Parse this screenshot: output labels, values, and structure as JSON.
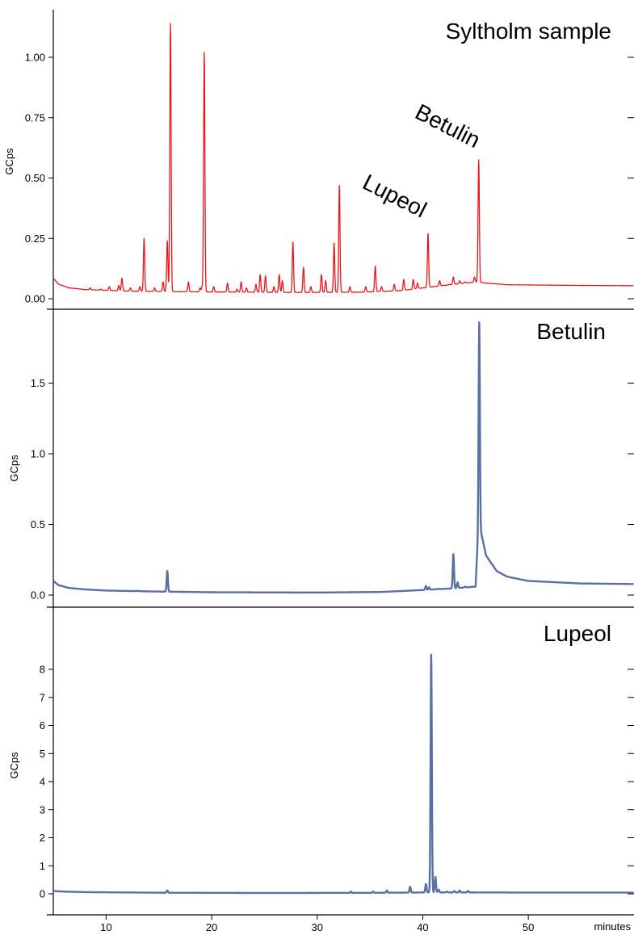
{
  "chart_data": [
    {
      "type": "line",
      "title": "Syltholm sample",
      "ylabel": "GCps",
      "xlabel": "",
      "xlim": [
        5,
        60
      ],
      "ylim": [
        -0.01,
        1.18
      ],
      "yticks": [
        0.0,
        0.25,
        0.5,
        0.75,
        1.0
      ],
      "ytick_labels": [
        "0.00",
        "0.25",
        "0.50",
        "0.75",
        "1.00"
      ],
      "color": "#e8161b",
      "baseline": [
        [
          5,
          0.085
        ],
        [
          5.5,
          0.06
        ],
        [
          6.5,
          0.045
        ],
        [
          8,
          0.038
        ],
        [
          12,
          0.032
        ],
        [
          20,
          0.028
        ],
        [
          28,
          0.026
        ],
        [
          34,
          0.027
        ],
        [
          38,
          0.034
        ],
        [
          40,
          0.045
        ],
        [
          42,
          0.055
        ],
        [
          44,
          0.065
        ],
        [
          45.2,
          0.07
        ],
        [
          46,
          0.065
        ],
        [
          48,
          0.058
        ],
        [
          55,
          0.055
        ],
        [
          60,
          0.054
        ]
      ],
      "peaks": [
        [
          8.5,
          0.045
        ],
        [
          9.5,
          0.04
        ],
        [
          10.3,
          0.05
        ],
        [
          11.2,
          0.055
        ],
        [
          11.5,
          0.085
        ],
        [
          12.3,
          0.045
        ],
        [
          13.2,
          0.05
        ],
        [
          13.6,
          0.25
        ],
        [
          14.6,
          0.045
        ],
        [
          15.4,
          0.07
        ],
        [
          15.8,
          0.24
        ],
        [
          16.1,
          1.14
        ],
        [
          17.8,
          0.07
        ],
        [
          18.9,
          0.045
        ],
        [
          19.1,
          0.05
        ],
        [
          19.3,
          1.02
        ],
        [
          20.2,
          0.05
        ],
        [
          21.5,
          0.065
        ],
        [
          22.4,
          0.04
        ],
        [
          22.8,
          0.07
        ],
        [
          23.3,
          0.045
        ],
        [
          24.2,
          0.06
        ],
        [
          24.6,
          0.1
        ],
        [
          25.1,
          0.095
        ],
        [
          25.9,
          0.05
        ],
        [
          26.4,
          0.1
        ],
        [
          26.7,
          0.075
        ],
        [
          27.7,
          0.235
        ],
        [
          28.7,
          0.13
        ],
        [
          29.4,
          0.05
        ],
        [
          30.4,
          0.1
        ],
        [
          30.8,
          0.075
        ],
        [
          31.6,
          0.23
        ],
        [
          32.1,
          0.47
        ],
        [
          33.1,
          0.05
        ],
        [
          34.6,
          0.05
        ],
        [
          35.5,
          0.135
        ],
        [
          36.1,
          0.05
        ],
        [
          37.3,
          0.06
        ],
        [
          38.2,
          0.08
        ],
        [
          39.1,
          0.08
        ],
        [
          39.5,
          0.065
        ],
        [
          40.5,
          0.27
        ],
        [
          41.6,
          0.075
        ],
        [
          42.5,
          0.06
        ],
        [
          42.9,
          0.09
        ],
        [
          43.5,
          0.075
        ],
        [
          44.0,
          0.07
        ],
        [
          44.5,
          0.065
        ],
        [
          44.9,
          0.09
        ],
        [
          45.3,
          0.575
        ]
      ],
      "annotations": [
        {
          "text": "Betulin",
          "x": 45.3,
          "y": 0.575
        },
        {
          "text": "Lupeol",
          "x": 40.5,
          "y": 0.27
        }
      ]
    },
    {
      "type": "line",
      "title": "Betulin",
      "ylabel": "GCps",
      "xlabel": "",
      "xlim": [
        5,
        60
      ],
      "ylim": [
        -0.09,
        1.95
      ],
      "yticks": [
        0.0,
        0.5,
        1.0,
        1.5
      ],
      "ytick_labels": [
        "0.0",
        "0.5",
        "1.0",
        "1.5"
      ],
      "color": "#5b6fa3",
      "baseline": [
        [
          5,
          0.1
        ],
        [
          5.5,
          0.07
        ],
        [
          6.5,
          0.05
        ],
        [
          8,
          0.04
        ],
        [
          10,
          0.032
        ],
        [
          15,
          0.025
        ],
        [
          20,
          0.02
        ],
        [
          30,
          0.018
        ],
        [
          36,
          0.022
        ],
        [
          39,
          0.032
        ],
        [
          41,
          0.04
        ],
        [
          43,
          0.048
        ],
        [
          45,
          0.06
        ],
        [
          45.35,
          0.6
        ],
        [
          45.5,
          0.45
        ],
        [
          46,
          0.28
        ],
        [
          47,
          0.17
        ],
        [
          48,
          0.13
        ],
        [
          50,
          0.1
        ],
        [
          55,
          0.082
        ],
        [
          60,
          0.078
        ]
      ],
      "peaks": [
        [
          13.0,
          0.03
        ],
        [
          15.8,
          0.17
        ],
        [
          40.3,
          0.065
        ],
        [
          40.6,
          0.055
        ],
        [
          41.5,
          0.045
        ],
        [
          42.9,
          0.29
        ],
        [
          43.3,
          0.09
        ],
        [
          44.0,
          0.06
        ],
        [
          45.35,
          1.93
        ]
      ],
      "annotations": []
    },
    {
      "type": "line",
      "title": "Lupeol",
      "ylabel": "GCps",
      "xlabel": "minutes",
      "xlim": [
        5,
        60
      ],
      "ylim": [
        -0.25,
        8.85
      ],
      "yticks": [
        0,
        1,
        2,
        3,
        4,
        5,
        6,
        7,
        8
      ],
      "ytick_labels": [
        "0",
        "1",
        "2",
        "3",
        "4",
        "5",
        "6",
        "7",
        "8"
      ],
      "xticks": [
        10,
        20,
        30,
        40,
        50
      ],
      "xtick_labels": [
        "10",
        "20",
        "30",
        "40",
        "50"
      ],
      "color": "#5b6fa3",
      "baseline": [
        [
          5,
          0.1
        ],
        [
          6,
          0.08
        ],
        [
          8,
          0.06
        ],
        [
          15,
          0.04
        ],
        [
          25,
          0.03
        ],
        [
          35,
          0.035
        ],
        [
          39,
          0.045
        ],
        [
          40.2,
          0.05
        ],
        [
          41.5,
          0.05
        ],
        [
          45,
          0.05
        ],
        [
          50,
          0.045
        ],
        [
          60,
          0.045
        ]
      ],
      "peaks": [
        [
          15.8,
          0.12
        ],
        [
          33.2,
          0.08
        ],
        [
          35.3,
          0.08
        ],
        [
          36.6,
          0.12
        ],
        [
          38.8,
          0.25
        ],
        [
          40.3,
          0.35
        ],
        [
          40.8,
          8.52
        ],
        [
          41.2,
          0.6
        ],
        [
          41.5,
          0.15
        ],
        [
          42.3,
          0.08
        ],
        [
          43.0,
          0.1
        ],
        [
          43.5,
          0.12
        ],
        [
          44.3,
          0.1
        ]
      ],
      "annotations": []
    }
  ]
}
